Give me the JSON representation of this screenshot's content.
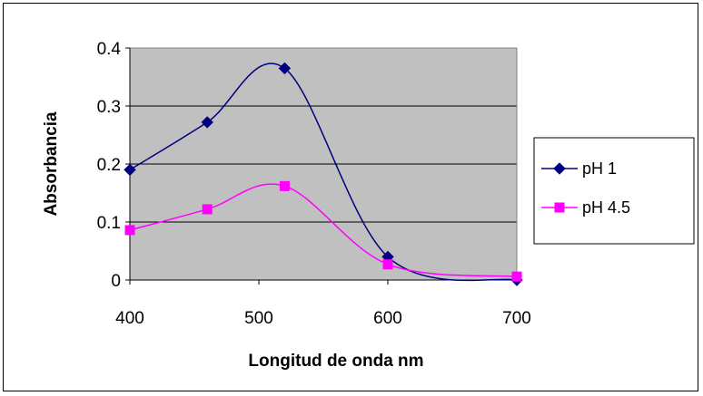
{
  "chart_data": {
    "type": "line",
    "title": "",
    "xlabel": "Longitud de onda nm",
    "ylabel": "Absorbancia",
    "xlim": [
      400,
      700
    ],
    "ylim": [
      0,
      0.4
    ],
    "x_ticks": [
      "400",
      "500",
      "600",
      "700"
    ],
    "y_ticks": [
      "0",
      "0.1",
      "0.2",
      "0.3",
      "0.4"
    ],
    "grid": "horizontal",
    "legend": "right",
    "plot_background": "#c0c0c0",
    "series": [
      {
        "name": "pH 1",
        "color": "#000080",
        "marker": "diamond",
        "points": [
          [
            400,
            0.19
          ],
          [
            460,
            0.272
          ],
          [
            520,
            0.365
          ],
          [
            600,
            0.04
          ],
          [
            700,
            0.0
          ]
        ]
      },
      {
        "name": "pH 4.5",
        "color": "#ff00ff",
        "marker": "square",
        "points": [
          [
            400,
            0.086
          ],
          [
            460,
            0.122
          ],
          [
            520,
            0.162
          ],
          [
            600,
            0.027
          ],
          [
            700,
            0.006
          ]
        ]
      }
    ]
  }
}
